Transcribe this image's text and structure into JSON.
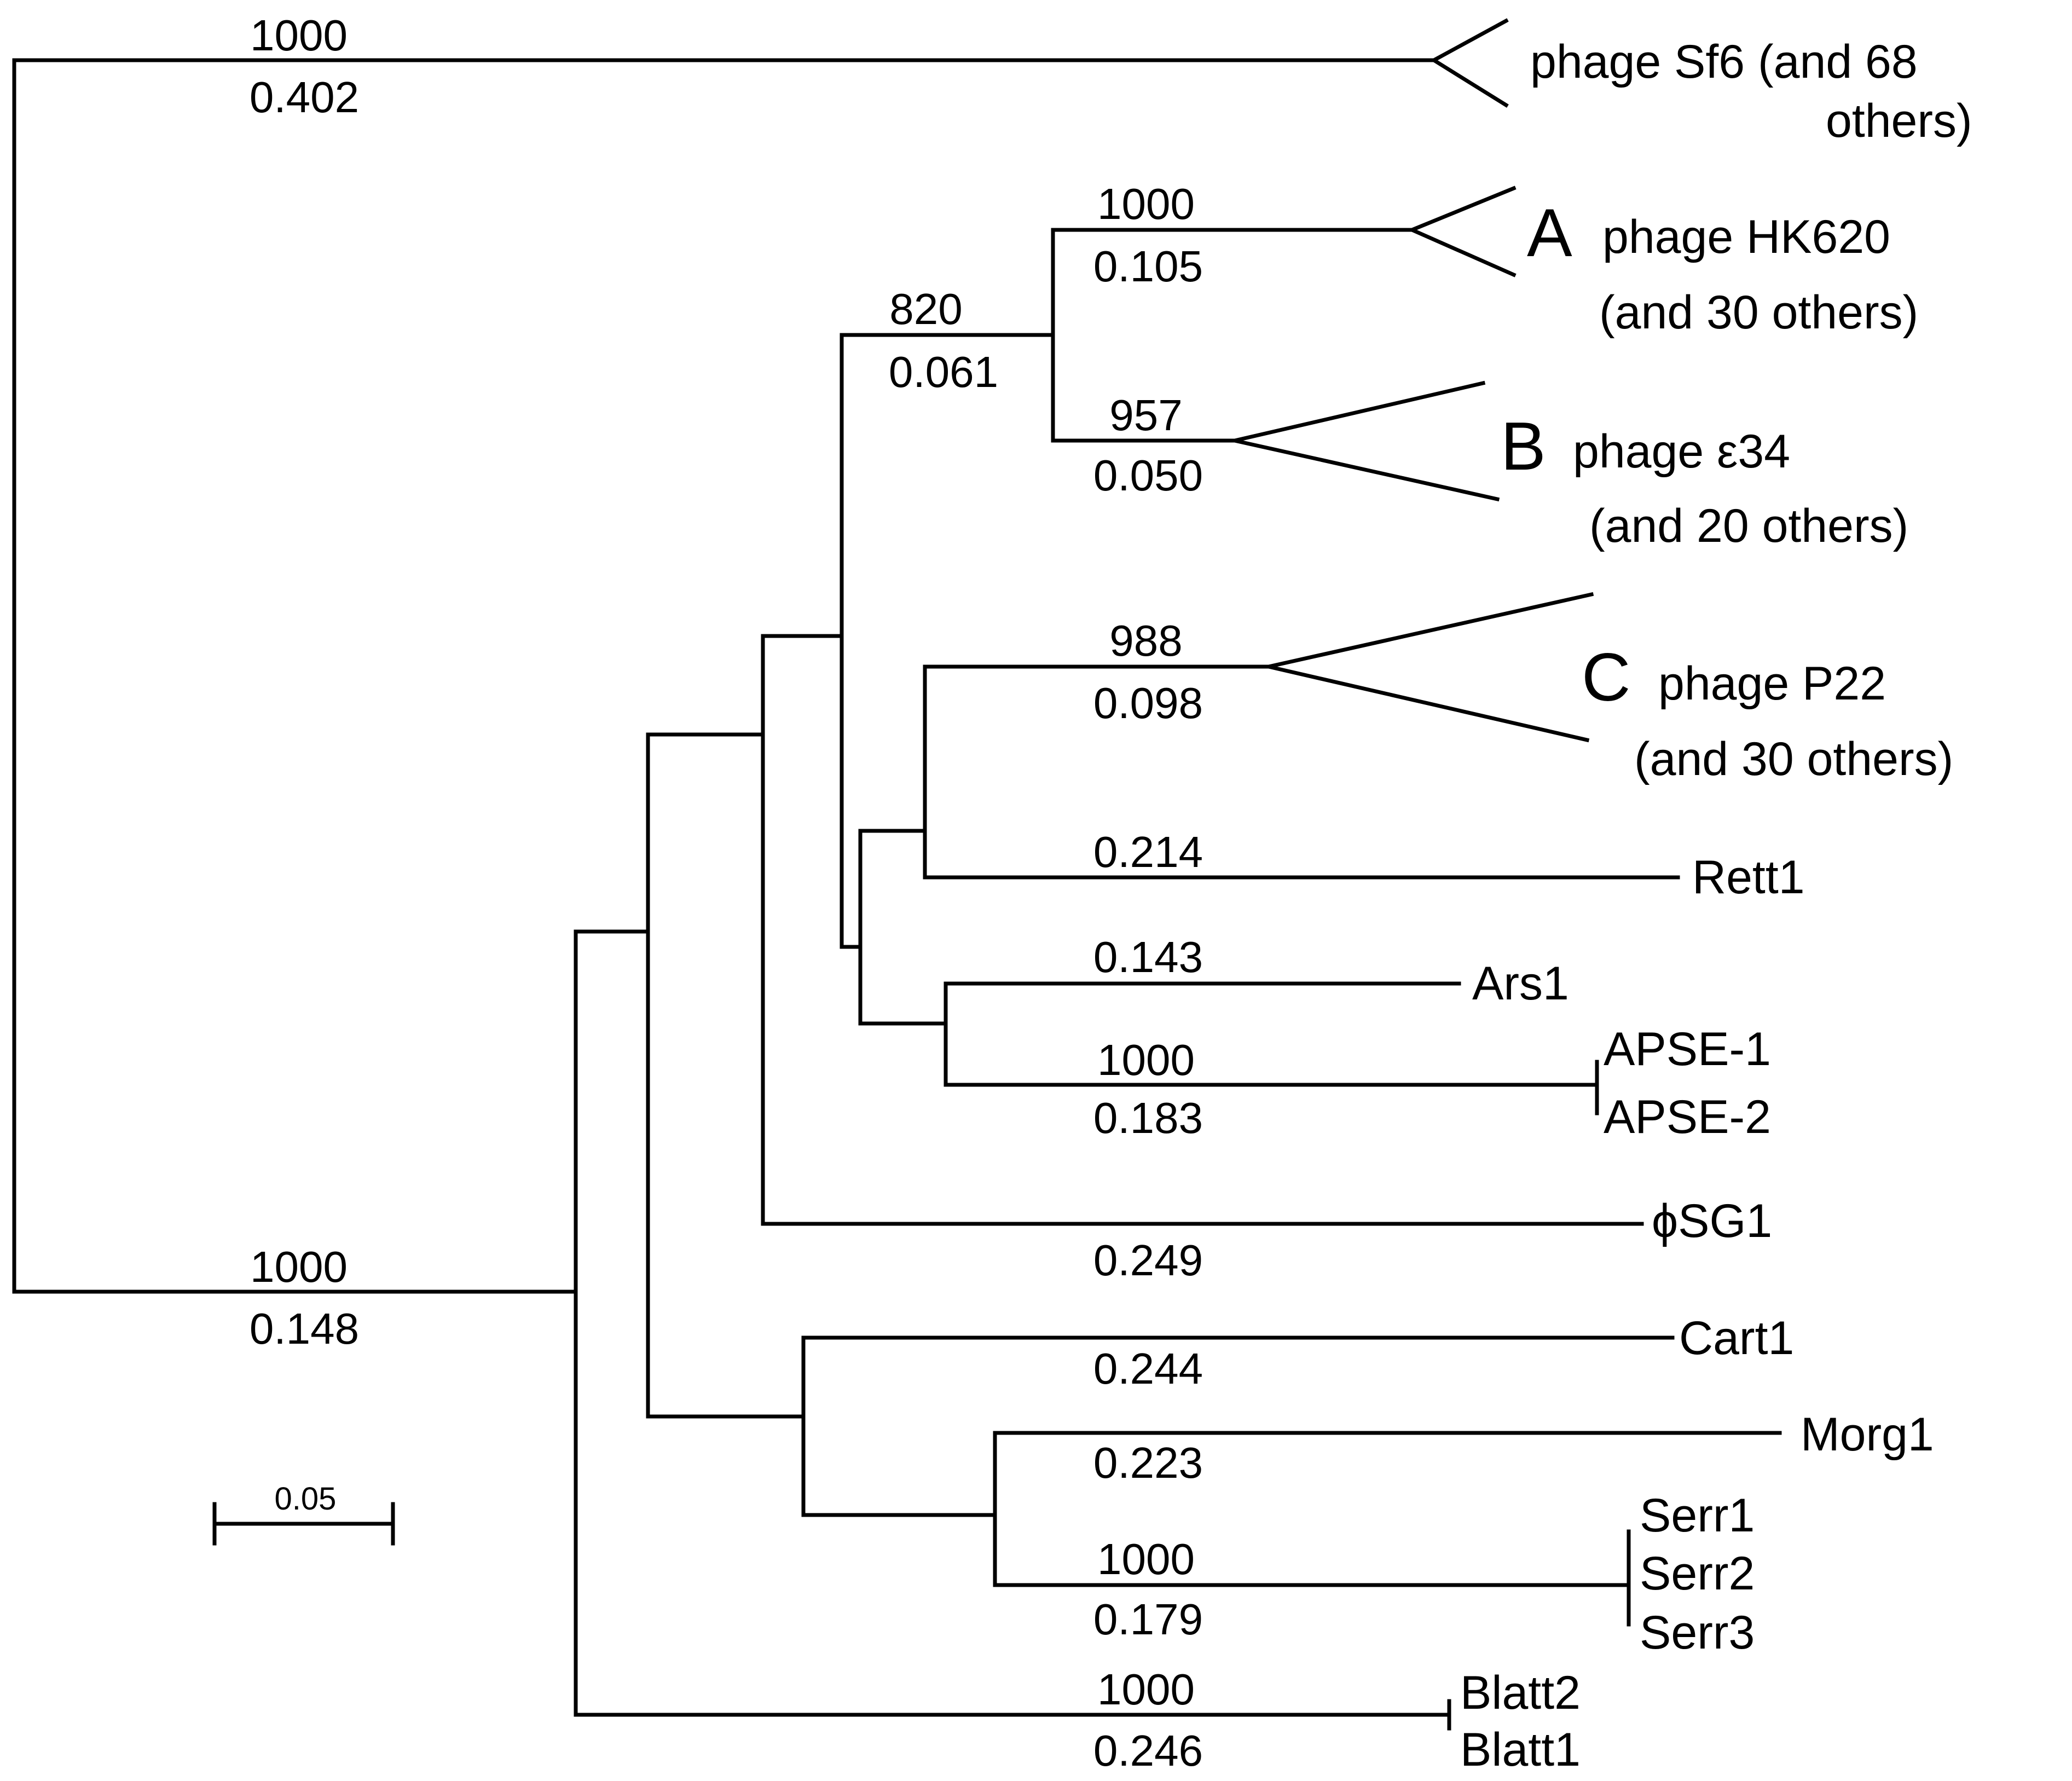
{
  "scale_bar": {
    "label": "0.05"
  },
  "branches": {
    "sf6": {
      "bootstrap": "1000",
      "length": "0.402"
    },
    "main": {
      "bootstrap": "1000",
      "length": "0.148"
    },
    "ab": {
      "bootstrap": "820",
      "length": "0.061"
    },
    "a": {
      "bootstrap": "1000",
      "length": "0.105"
    },
    "b": {
      "bootstrap": "957",
      "length": "0.050"
    },
    "c": {
      "bootstrap": "988",
      "length": "0.098"
    },
    "rett1": {
      "length": "0.214"
    },
    "ars1": {
      "length": "0.143"
    },
    "apse": {
      "bootstrap": "1000",
      "length": "0.183"
    },
    "sg1": {
      "length": "0.249"
    },
    "cart1": {
      "length": "0.244"
    },
    "morg1": {
      "length": "0.223"
    },
    "serr": {
      "bootstrap": "1000",
      "length": "0.179"
    },
    "blatt": {
      "bootstrap": "1000",
      "length": "0.246"
    }
  },
  "clades": {
    "sf6": {
      "line1": "phage Sf6 (and 68",
      "line2": "others)"
    },
    "a": {
      "letter": "A",
      "line1": "phage HK620",
      "line2": "(and 30 others)"
    },
    "b": {
      "letter": "B",
      "line1": "phage ε34",
      "line2": "(and 20 others)"
    },
    "c": {
      "letter": "C",
      "line1": "phage P22",
      "line2": "(and 30 others)"
    }
  },
  "leaves": {
    "rett1": "Rett1",
    "ars1": "Ars1",
    "apse1": "APSE-1",
    "apse2": "APSE-2",
    "sg1": "ϕSG1",
    "cart1": "Cart1",
    "morg1": "Morg1",
    "serr1": "Serr1",
    "serr2": "Serr2",
    "serr3": "Serr3",
    "blatt2": "Blatt2",
    "blatt1": "Blatt1"
  }
}
